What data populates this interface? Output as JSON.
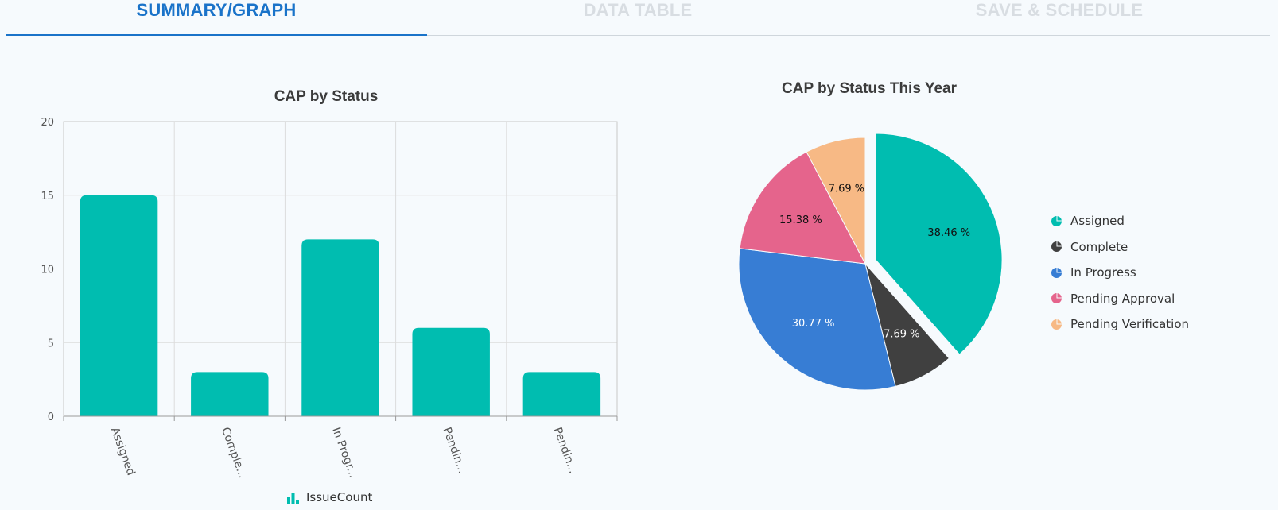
{
  "tabs": [
    {
      "label": "SUMMARY/GRAPH",
      "active": true
    },
    {
      "label": "DATA TABLE",
      "active": false
    },
    {
      "label": "SAVE & SCHEDULE",
      "active": false
    }
  ],
  "bar_chart": {
    "title": "CAP by Status",
    "legend_label": "IssueCount",
    "legend_icon": "bar-chart-icon",
    "tick_labels": [
      "Assigned",
      "Comple...",
      "In Progr...",
      "Pendin...",
      "Pendin..."
    ],
    "bar_color": "#00bdb0"
  },
  "pie_chart": {
    "title": "CAP by Status This Year",
    "legend": [
      {
        "label": "Assigned",
        "color": "#00bdb0"
      },
      {
        "label": "Complete",
        "color": "#404040"
      },
      {
        "label": "In Progress",
        "color": "#377dd4"
      },
      {
        "label": "Pending Approval",
        "color": "#e5648c"
      },
      {
        "label": "Pending Verification",
        "color": "#f7b985"
      }
    ],
    "legend_icon": "pie-icon"
  },
  "chart_data": [
    {
      "type": "bar",
      "title": "CAP by Status",
      "categories": [
        "Assigned",
        "Complete",
        "In Progress",
        "Pending Approval",
        "Pending Verification"
      ],
      "series": [
        {
          "name": "IssueCount",
          "values": [
            15,
            3,
            12,
            6,
            3
          ]
        }
      ],
      "xlabel": "",
      "ylabel": "",
      "ylim": [
        0,
        20
      ],
      "yticks": [
        0,
        5,
        10,
        15,
        20
      ],
      "grid": true,
      "legend": "bottom"
    },
    {
      "type": "pie",
      "title": "CAP by Status This Year",
      "categories": [
        "Assigned",
        "Complete",
        "In Progress",
        "Pending Approval",
        "Pending Verification"
      ],
      "values": [
        38.46,
        7.69,
        30.77,
        15.38,
        7.69
      ],
      "data_labels": [
        "38.46 %",
        "7.69 %",
        "30.77 %",
        "15.38 %",
        "7.69 %"
      ],
      "exploded": "Assigned",
      "legend": "right"
    }
  ]
}
